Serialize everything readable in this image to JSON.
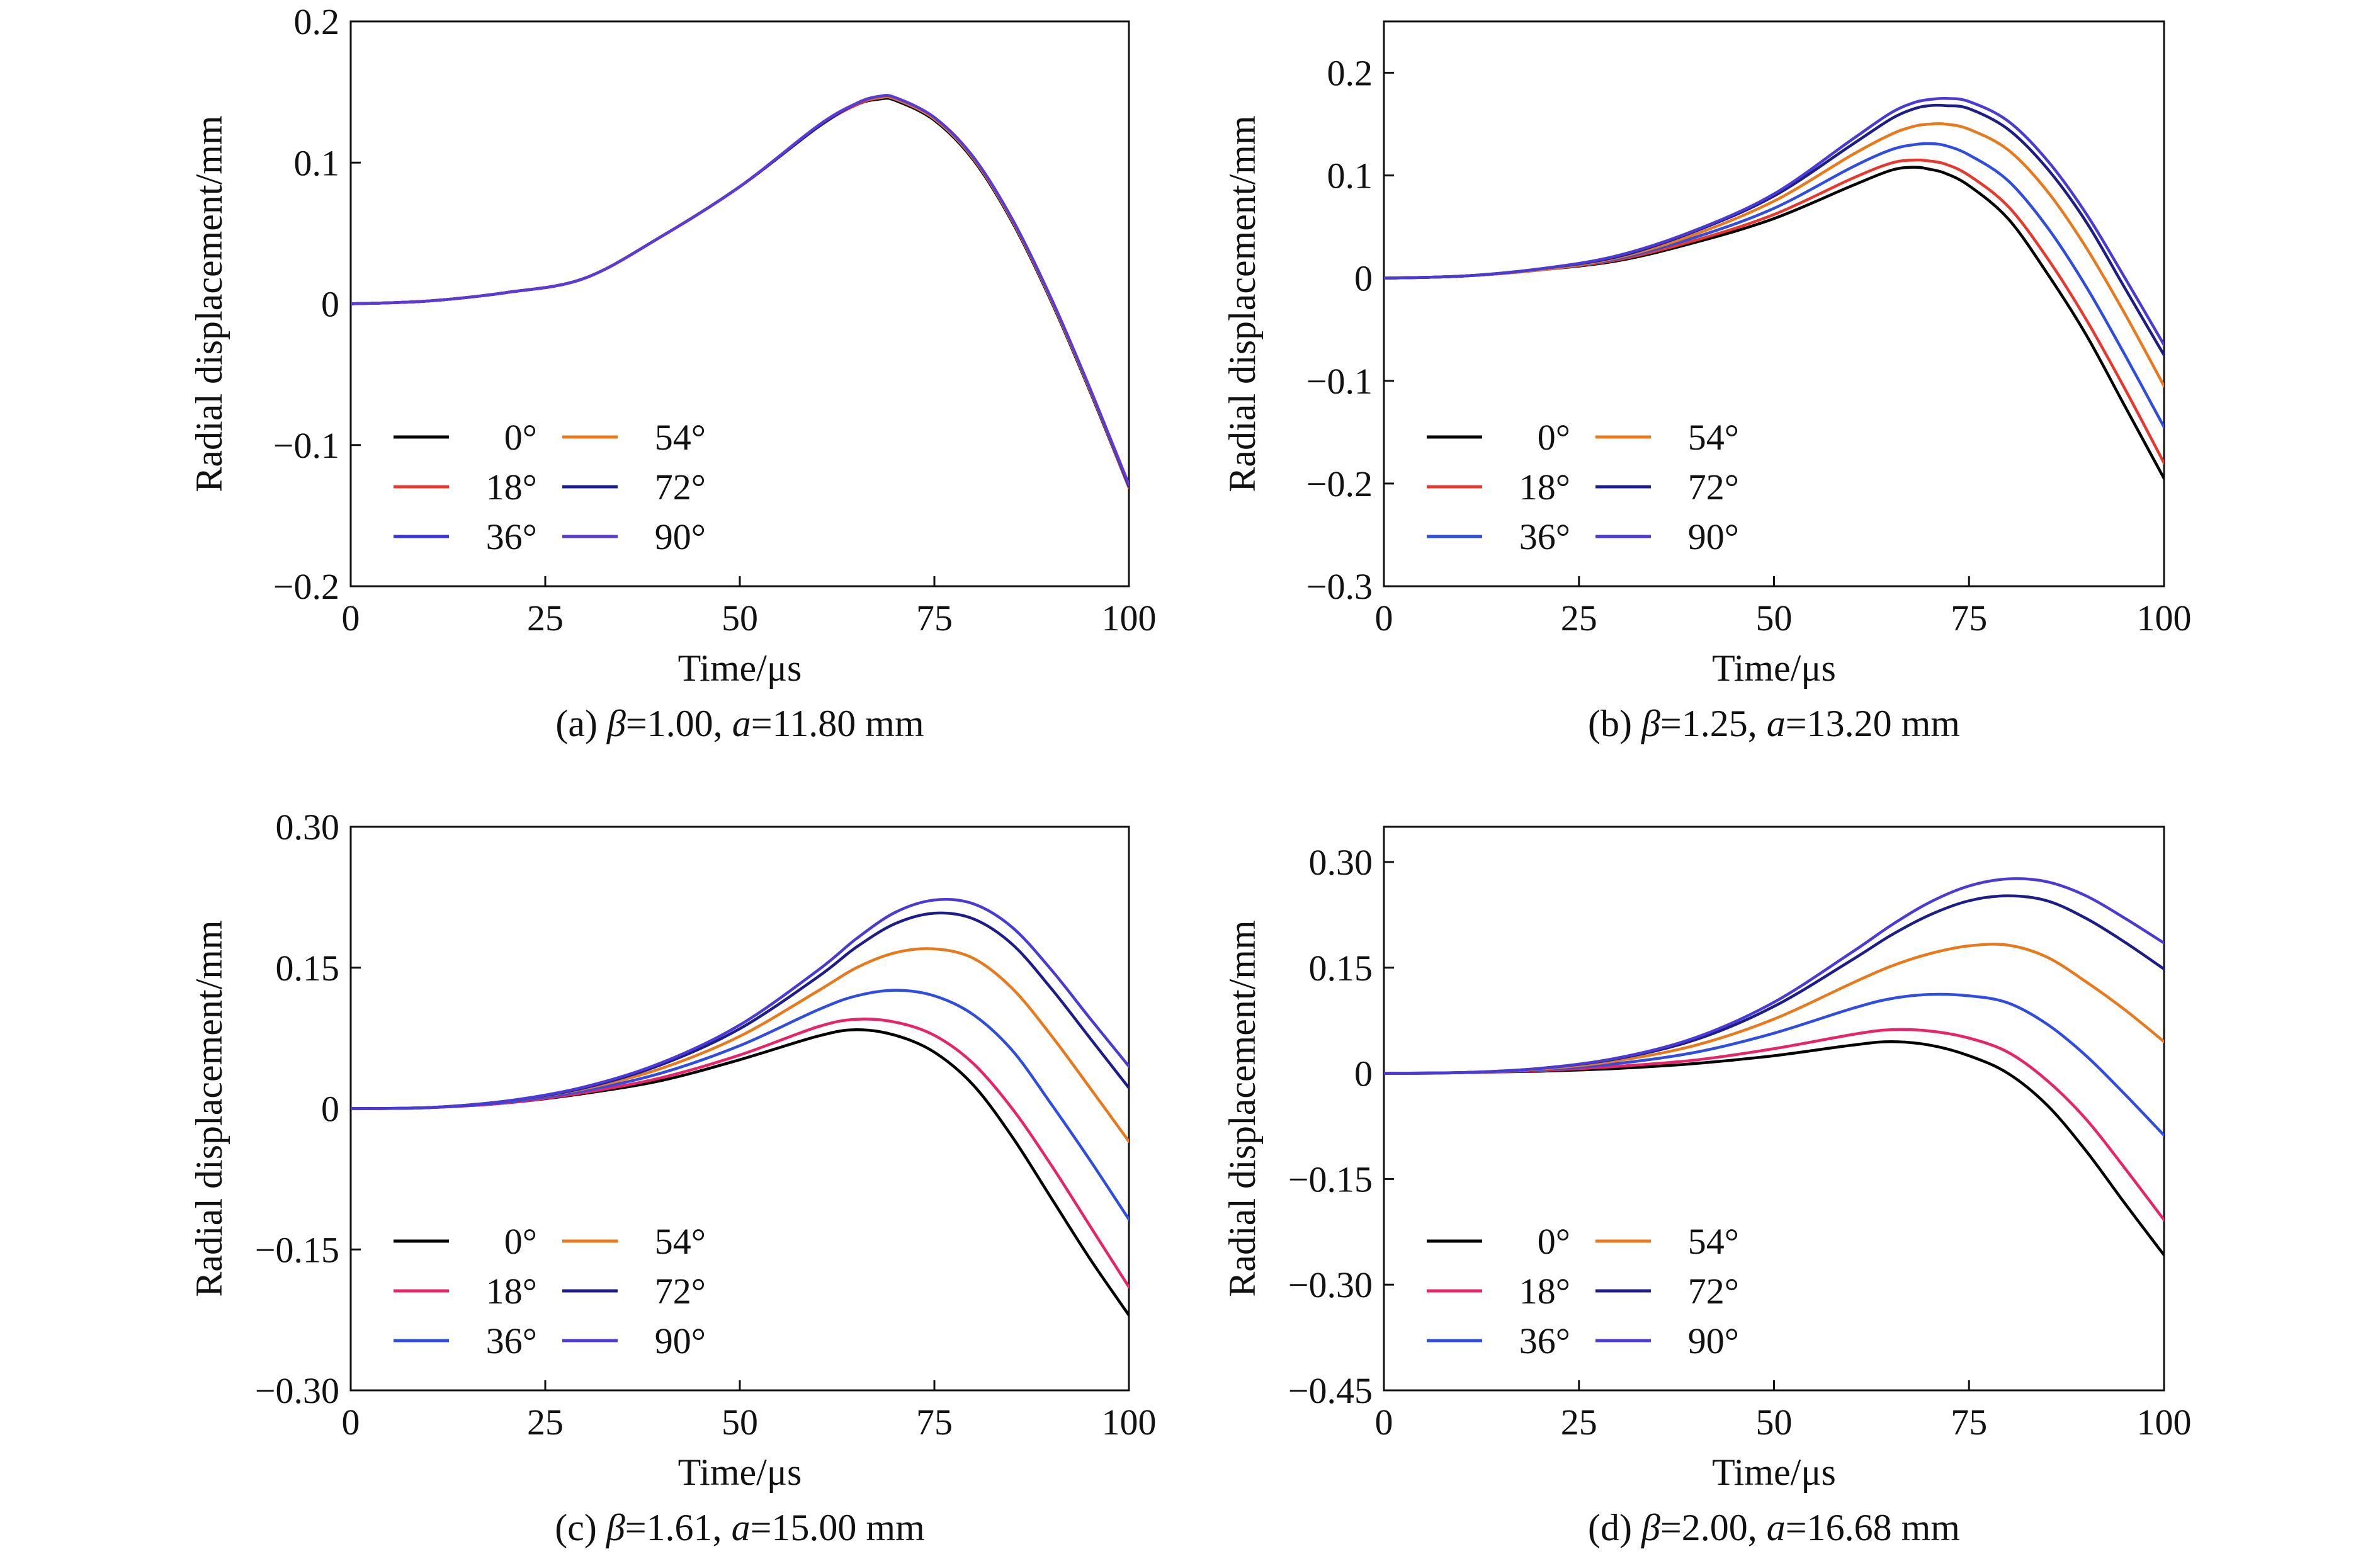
{
  "chart_data": [
    {
      "type": "line",
      "caption": {
        "prefix": "(a) ",
        "beta_sym": "β",
        "beta_val": "=1.00, ",
        "a_sym": "a",
        "a_val": "=11.80 mm"
      },
      "xlabel": "Time/μs",
      "ylabel": "Radial displacement/mm",
      "xlim": [
        0,
        100
      ],
      "ylim": [
        -0.2,
        0.2
      ],
      "xticks": [
        0,
        25,
        50,
        75,
        100
      ],
      "xtick_labels": [
        "0",
        "25",
        "50",
        "75",
        "100"
      ],
      "yticks": [
        -0.2,
        -0.1,
        0,
        0.1,
        0.2
      ],
      "ytick_labels": [
        "−0.2",
        "−0.1",
        "0",
        "0.1",
        "0.2"
      ],
      "legend_position": "bottom-left",
      "x": [
        0,
        10,
        20,
        30,
        40,
        50,
        60,
        65,
        68,
        70,
        75,
        80,
        85,
        90,
        95,
        100
      ],
      "series": [
        {
          "name": "0°",
          "color": "#000000",
          "values": [
            0,
            0.002,
            0.008,
            0.018,
            0.048,
            0.083,
            0.125,
            0.141,
            0.145,
            0.144,
            0.13,
            0.102,
            0.058,
            0.002,
            -0.062,
            -0.13
          ]
        },
        {
          "name": "18°",
          "color": "#e8382d",
          "values": [
            0,
            0.002,
            0.008,
            0.018,
            0.048,
            0.083,
            0.125,
            0.141,
            0.146,
            0.145,
            0.131,
            0.103,
            0.059,
            0.003,
            -0.061,
            -0.13
          ]
        },
        {
          "name": "36°",
          "color": "#3a34e0",
          "values": [
            0,
            0.002,
            0.008,
            0.018,
            0.048,
            0.083,
            0.125,
            0.142,
            0.146,
            0.145,
            0.131,
            0.103,
            0.059,
            0.003,
            -0.061,
            -0.129
          ]
        },
        {
          "name": "54°",
          "color": "#e87a1c",
          "values": [
            0,
            0.002,
            0.008,
            0.018,
            0.048,
            0.083,
            0.125,
            0.142,
            0.146,
            0.145,
            0.131,
            0.103,
            0.059,
            0.003,
            -0.061,
            -0.129
          ]
        },
        {
          "name": "72°",
          "color": "#1c1c8a",
          "values": [
            0,
            0.002,
            0.008,
            0.018,
            0.048,
            0.083,
            0.125,
            0.142,
            0.147,
            0.146,
            0.132,
            0.104,
            0.06,
            0.004,
            -0.06,
            -0.129
          ]
        },
        {
          "name": "90°",
          "color": "#5b3ad6",
          "values": [
            0,
            0.002,
            0.008,
            0.018,
            0.048,
            0.083,
            0.126,
            0.142,
            0.147,
            0.146,
            0.132,
            0.104,
            0.06,
            0.004,
            -0.06,
            -0.128
          ]
        }
      ]
    },
    {
      "type": "line",
      "caption": {
        "prefix": "(b) ",
        "beta_sym": "β",
        "beta_val": "=1.25, ",
        "a_sym": "a",
        "a_val": "=13.20 mm"
      },
      "xlabel": "Time/μs",
      "ylabel": "Radial displacement/mm",
      "xlim": [
        0,
        100
      ],
      "ylim": [
        -0.3,
        0.25
      ],
      "xticks": [
        0,
        25,
        50,
        75,
        100
      ],
      "xtick_labels": [
        "0",
        "25",
        "50",
        "75",
        "100"
      ],
      "yticks": [
        -0.3,
        -0.2,
        -0.1,
        0,
        0.1,
        0.2
      ],
      "ytick_labels": [
        "−0.3",
        "−0.2",
        "−0.1",
        "0",
        "0.1",
        "0.2"
      ],
      "legend_position": "bottom-left",
      "x": [
        0,
        10,
        20,
        30,
        40,
        50,
        60,
        65,
        68,
        70,
        72,
        75,
        80,
        85,
        90,
        95,
        100
      ],
      "series": [
        {
          "name": "0°",
          "color": "#000000",
          "values": [
            0,
            0.002,
            0.008,
            0.017,
            0.035,
            0.058,
            0.09,
            0.105,
            0.108,
            0.106,
            0.102,
            0.09,
            0.058,
            0.005,
            -0.055,
            -0.125,
            -0.195
          ]
        },
        {
          "name": "18°",
          "color": "#e8382d",
          "values": [
            0,
            0.002,
            0.008,
            0.018,
            0.037,
            0.062,
            0.097,
            0.112,
            0.115,
            0.114,
            0.111,
            0.1,
            0.07,
            0.02,
            -0.04,
            -0.108,
            -0.18
          ]
        },
        {
          "name": "36°",
          "color": "#2f4de0",
          "values": [
            0,
            0.002,
            0.008,
            0.019,
            0.04,
            0.068,
            0.108,
            0.125,
            0.13,
            0.131,
            0.129,
            0.12,
            0.095,
            0.05,
            -0.008,
            -0.075,
            -0.145
          ]
        },
        {
          "name": "54°",
          "color": "#e87a1c",
          "values": [
            0,
            0.002,
            0.008,
            0.02,
            0.043,
            0.075,
            0.12,
            0.14,
            0.148,
            0.15,
            0.15,
            0.145,
            0.125,
            0.085,
            0.03,
            -0.035,
            -0.105
          ]
        },
        {
          "name": "72°",
          "color": "#1c1c8a",
          "values": [
            0,
            0.002,
            0.009,
            0.021,
            0.046,
            0.08,
            0.13,
            0.155,
            0.165,
            0.168,
            0.168,
            0.165,
            0.145,
            0.107,
            0.055,
            -0.01,
            -0.075
          ]
        },
        {
          "name": "90°",
          "color": "#4a3ad6",
          "values": [
            0,
            0.002,
            0.009,
            0.022,
            0.047,
            0.082,
            0.135,
            0.161,
            0.171,
            0.174,
            0.175,
            0.172,
            0.153,
            0.115,
            0.063,
            0.0,
            -0.065
          ]
        }
      ]
    },
    {
      "type": "line",
      "caption": {
        "prefix": "(c) ",
        "beta_sym": "β",
        "beta_val": "=1.61, ",
        "a_sym": "a",
        "a_val": "=15.00 mm"
      },
      "xlabel": "Time/μs",
      "ylabel": "Radial displacement/mm",
      "xlim": [
        0,
        100
      ],
      "ylim": [
        -0.3,
        0.3
      ],
      "xticks": [
        0,
        25,
        50,
        75,
        100
      ],
      "xtick_labels": [
        "0",
        "25",
        "50",
        "75",
        "100"
      ],
      "yticks": [
        -0.3,
        -0.15,
        0,
        0.15,
        0.3
      ],
      "ytick_labels": [
        "−0.30",
        "−0.15",
        "0",
        "0.15",
        "0.30"
      ],
      "legend_position": "bottom-left",
      "x": [
        0,
        10,
        20,
        30,
        40,
        50,
        60,
        65,
        70,
        75,
        80,
        85,
        90,
        95,
        100
      ],
      "series": [
        {
          "name": "0°",
          "color": "#000000",
          "values": [
            0,
            0.001,
            0.006,
            0.016,
            0.03,
            0.052,
            0.077,
            0.084,
            0.078,
            0.06,
            0.025,
            -0.03,
            -0.095,
            -0.16,
            -0.22
          ]
        },
        {
          "name": "18°",
          "color": "#e8236a",
          "values": [
            0,
            0.001,
            0.006,
            0.017,
            0.033,
            0.057,
            0.087,
            0.095,
            0.092,
            0.078,
            0.048,
            0.0,
            -0.06,
            -0.125,
            -0.19
          ]
        },
        {
          "name": "36°",
          "color": "#2f4de0",
          "values": [
            0,
            0.001,
            0.007,
            0.019,
            0.038,
            0.067,
            0.105,
            0.12,
            0.126,
            0.12,
            0.1,
            0.062,
            0.005,
            -0.055,
            -0.118
          ]
        },
        {
          "name": "54°",
          "color": "#e87a1c",
          "values": [
            0,
            0.001,
            0.008,
            0.021,
            0.043,
            0.077,
            0.125,
            0.15,
            0.166,
            0.17,
            0.16,
            0.128,
            0.078,
            0.022,
            -0.035
          ]
        },
        {
          "name": "72°",
          "color": "#1c1c8a",
          "values": [
            0,
            0.001,
            0.008,
            0.022,
            0.047,
            0.085,
            0.14,
            0.172,
            0.197,
            0.208,
            0.202,
            0.175,
            0.128,
            0.075,
            0.022
          ]
        },
        {
          "name": "90°",
          "color": "#4a3ad6",
          "values": [
            0,
            0.001,
            0.008,
            0.023,
            0.049,
            0.089,
            0.147,
            0.181,
            0.209,
            0.222,
            0.218,
            0.193,
            0.148,
            0.096,
            0.045
          ]
        }
      ]
    },
    {
      "type": "line",
      "caption": {
        "prefix": "(d) ",
        "beta_sym": "β",
        "beta_val": "=2.00, ",
        "a_sym": "a",
        "a_val": "=16.68 mm"
      },
      "xlabel": "Time/μs",
      "ylabel": "Radial displacement/mm",
      "xlim": [
        0,
        100
      ],
      "ylim": [
        -0.45,
        0.35
      ],
      "xticks": [
        0,
        25,
        50,
        75,
        100
      ],
      "xtick_labels": [
        "0",
        "25",
        "50",
        "75",
        "100"
      ],
      "yticks": [
        -0.45,
        -0.3,
        -0.15,
        0,
        0.15,
        0.3
      ],
      "ytick_labels": [
        "−0.45",
        "−0.30",
        "−0.15",
        "0",
        "0.15",
        "0.30"
      ],
      "legend_position": "bottom-left",
      "x": [
        0,
        10,
        20,
        30,
        40,
        50,
        60,
        65,
        70,
        75,
        80,
        85,
        90,
        95,
        100
      ],
      "series": [
        {
          "name": "0°",
          "color": "#000000",
          "values": [
            0,
            0.001,
            0.003,
            0.007,
            0.014,
            0.025,
            0.04,
            0.045,
            0.04,
            0.025,
            0.0,
            -0.045,
            -0.11,
            -0.185,
            -0.258
          ]
        },
        {
          "name": "18°",
          "color": "#e8236a",
          "values": [
            0,
            0.001,
            0.004,
            0.01,
            0.019,
            0.035,
            0.055,
            0.062,
            0.06,
            0.05,
            0.03,
            -0.01,
            -0.065,
            -0.135,
            -0.208
          ]
        },
        {
          "name": "36°",
          "color": "#2f4de0",
          "values": [
            0,
            0.001,
            0.005,
            0.014,
            0.03,
            0.057,
            0.092,
            0.106,
            0.112,
            0.11,
            0.1,
            0.07,
            0.025,
            -0.03,
            -0.088
          ]
        },
        {
          "name": "54°",
          "color": "#e87a1c",
          "values": [
            0,
            0.001,
            0.006,
            0.018,
            0.04,
            0.077,
            0.128,
            0.152,
            0.17,
            0.181,
            0.182,
            0.165,
            0.13,
            0.09,
            0.045
          ]
        },
        {
          "name": "72°",
          "color": "#1c1c8a",
          "values": [
            0,
            0.001,
            0.007,
            0.021,
            0.048,
            0.095,
            0.161,
            0.196,
            0.225,
            0.245,
            0.252,
            0.245,
            0.22,
            0.186,
            0.148
          ]
        },
        {
          "name": "90°",
          "color": "#4a3ad6",
          "values": [
            0,
            0.001,
            0.007,
            0.022,
            0.051,
            0.101,
            0.172,
            0.21,
            0.243,
            0.266,
            0.276,
            0.272,
            0.252,
            0.22,
            0.185
          ]
        }
      ]
    }
  ]
}
